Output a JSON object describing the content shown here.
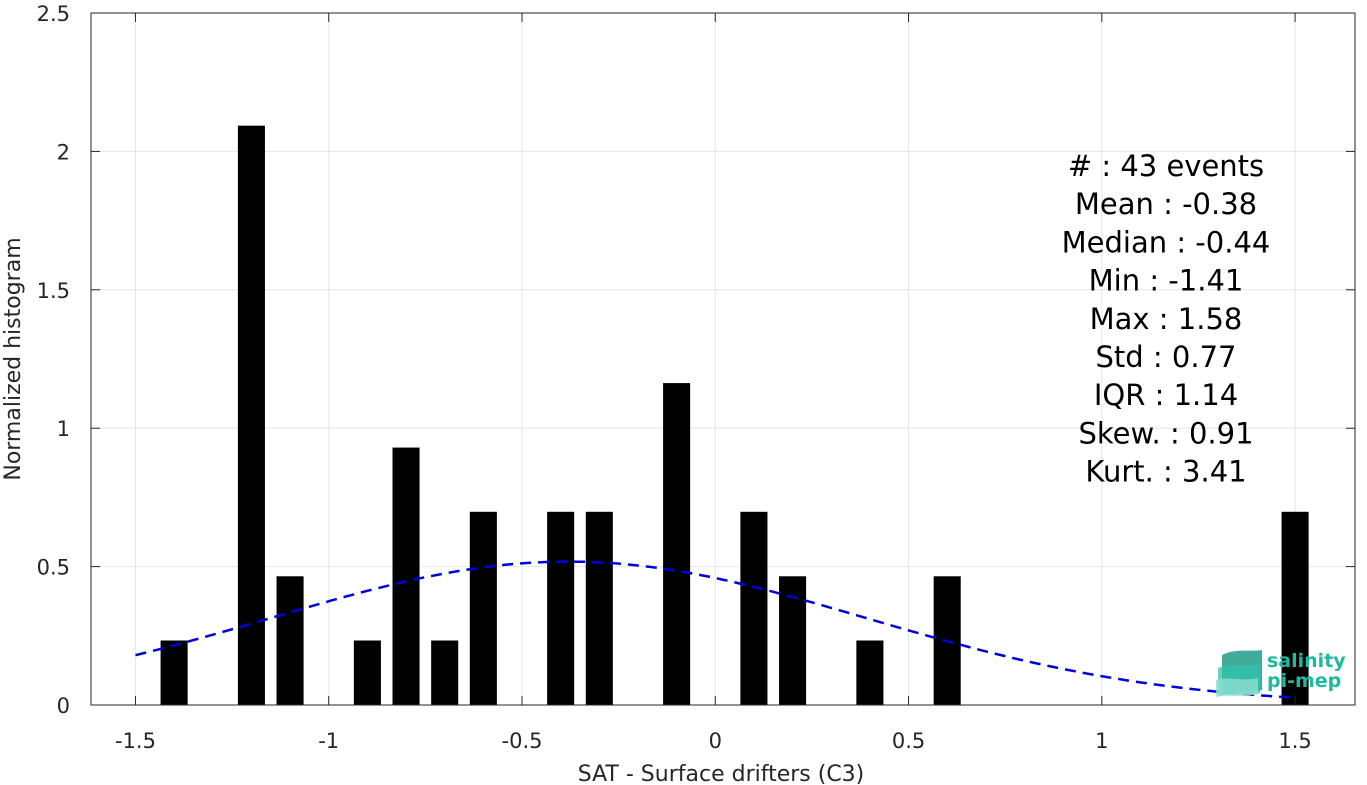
{
  "chart_data": {
    "type": "bar",
    "title": "",
    "xlabel": "SAT - Surface drifters (C3)",
    "ylabel": "Normalized histogram",
    "xlim": [
      -1.615,
      1.655
    ],
    "ylim": [
      0,
      2.5
    ],
    "xticks": [
      -1.5,
      -1,
      -0.5,
      0,
      0.5,
      1,
      1.5
    ],
    "xtick_labels": [
      "-1.5",
      "-1",
      "-0.5",
      "0",
      "0.5",
      "1",
      "1.5"
    ],
    "yticks": [
      0,
      0.5,
      1,
      1.5,
      2,
      2.5
    ],
    "ytick_labels": [
      "0",
      "0.5",
      "1",
      "1.5",
      "2",
      "2.5"
    ],
    "grid": true,
    "bar_width": 0.07,
    "bar_color": "#000000",
    "bars": [
      {
        "x": -1.4,
        "y": 0.233
      },
      {
        "x": -1.2,
        "y": 2.093
      },
      {
        "x": -1.1,
        "y": 0.465
      },
      {
        "x": -0.9,
        "y": 0.233
      },
      {
        "x": -0.8,
        "y": 0.93
      },
      {
        "x": -0.7,
        "y": 0.233
      },
      {
        "x": -0.6,
        "y": 0.698
      },
      {
        "x": -0.4,
        "y": 0.698
      },
      {
        "x": -0.3,
        "y": 0.698
      },
      {
        "x": -0.1,
        "y": 1.163
      },
      {
        "x": 0.1,
        "y": 0.698
      },
      {
        "x": 0.2,
        "y": 0.465
      },
      {
        "x": 0.4,
        "y": 0.233
      },
      {
        "x": 0.6,
        "y": 0.465
      },
      {
        "x": 1.5,
        "y": 0.698
      }
    ],
    "fit_curve": {
      "kind": "gaussian",
      "mean": -0.38,
      "std": 0.77,
      "x_range": [
        -1.5,
        1.5
      ],
      "color": "#0000dd",
      "style": "dashed"
    },
    "stats_lines": [
      "#  : 43 events",
      "Mean : -0.38",
      "Median : -0.44",
      "Min : -1.41",
      "Max : 1.58",
      "Std : 0.77",
      "IQR : 1.14",
      "Skew. : 0.91",
      "Kurt. : 3.41"
    ]
  },
  "logo": {
    "line1": "salinity",
    "line2": "pi-mep",
    "color": "#21b8a0"
  }
}
